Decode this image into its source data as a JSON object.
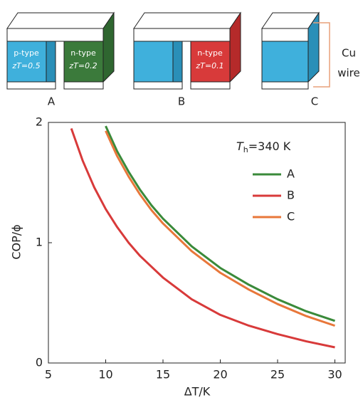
{
  "diagram": {
    "modules": [
      {
        "label": "A",
        "legs": [
          {
            "type": "p-type",
            "zt": "zT=0.5"
          },
          {
            "type": "n-type",
            "zt": "zT=0.2"
          }
        ]
      },
      {
        "label": "B",
        "legs": [
          {
            "type": "n-type",
            "zt": "zT=0.1"
          }
        ]
      },
      {
        "label": "C",
        "wire": [
          "Cu",
          "wire"
        ]
      }
    ]
  },
  "chart_data": {
    "type": "line",
    "x_label": "ΔT/K",
    "y_label": "COP/ϕ",
    "annotation": {
      "symbol": "T",
      "subscript": "h",
      "text": "=340 K"
    },
    "x": [
      7,
      8,
      9,
      10,
      11,
      12,
      13,
      14,
      15,
      17.5,
      20,
      22.5,
      25,
      27.5,
      30
    ],
    "series": [
      {
        "name": "A",
        "color": "#3a8a3a",
        "values": [
          null,
          null,
          null,
          1.97,
          1.76,
          1.59,
          1.44,
          1.31,
          1.2,
          0.97,
          0.79,
          0.65,
          0.53,
          0.43,
          0.35
        ]
      },
      {
        "name": "B",
        "color": "#d83a3a",
        "values": [
          1.95,
          1.68,
          1.46,
          1.28,
          1.13,
          1.0,
          0.89,
          0.8,
          0.71,
          0.53,
          0.4,
          0.31,
          0.24,
          0.18,
          0.13
        ]
      },
      {
        "name": "C",
        "color": "#e8773a",
        "values": [
          null,
          null,
          null,
          1.93,
          1.72,
          1.55,
          1.4,
          1.27,
          1.16,
          0.93,
          0.75,
          0.61,
          0.49,
          0.39,
          0.31
        ]
      }
    ],
    "xlim": [
      5,
      30.9
    ],
    "ylim": [
      0,
      2
    ],
    "xticks": [
      5,
      10,
      15,
      20,
      25,
      30
    ],
    "yticks": [
      0,
      1,
      2
    ]
  }
}
